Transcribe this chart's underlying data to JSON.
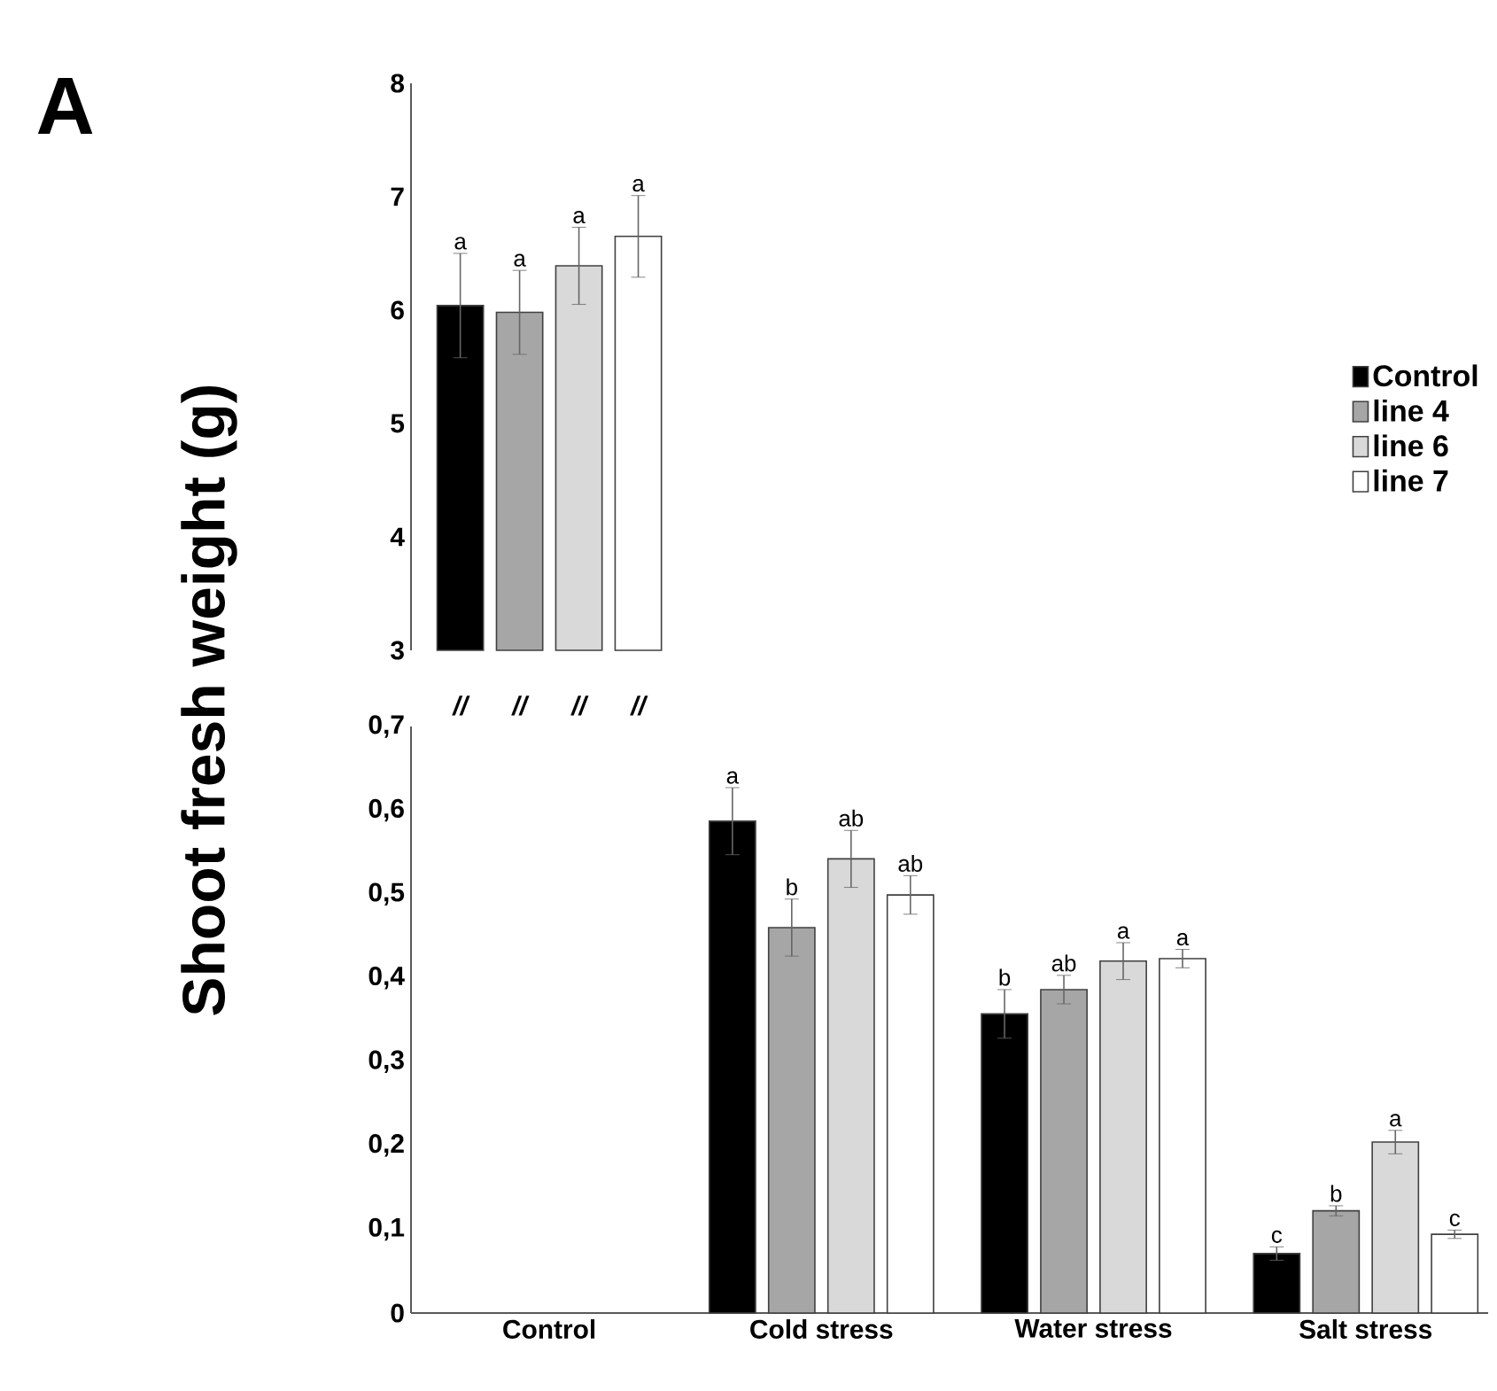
{
  "chart_data": [
    {
      "type": "bar",
      "categories": [
        null
      ],
      "series": [
        {
          "name": "Control",
          "color": "#000000",
          "values": [
            6.04
          ],
          "errors": [
            0.46
          ]
        },
        {
          "name": "line 4",
          "color": "#a6a6a6",
          "values": [
            5.98
          ],
          "errors": [
            0.37
          ]
        },
        {
          "name": "line 6",
          "color": "#d9d9d9",
          "values": [
            6.39
          ],
          "errors": [
            0.34
          ]
        },
        {
          "name": "line 7",
          "color": "#ffffff",
          "values": [
            6.65
          ],
          "errors": [
            0.36
          ]
        }
      ],
      "ylim": [
        3,
        8
      ],
      "yticks": [
        3,
        4,
        5,
        6,
        7,
        8
      ],
      "tick_labels": "y",
      "legend": "right",
      "annotations": [
        "a",
        "a",
        "a",
        "a"
      ]
    },
    {
      "type": "bar",
      "title": "A",
      "categories": [
        "Control",
        "Cold stress",
        "Water stress",
        "Salt stress"
      ],
      "ylabel": "Shoot fresh weight (g)",
      "series": [
        {
          "color": "#000000",
          "values": [
            null,
            0.587,
            0.357,
            0.071
          ],
          "errors": [
            null,
            0.04,
            0.029,
            0.008
          ]
        },
        {
          "color": "#a6a6a6",
          "values": [
            null,
            0.46,
            0.386,
            0.122
          ],
          "errors": [
            null,
            0.034,
            0.017,
            0.006
          ]
        },
        {
          "color": "#d9d9d9",
          "values": [
            null,
            0.542,
            0.42,
            0.204
          ],
          "errors": [
            null,
            0.034,
            0.022,
            0.014
          ]
        },
        {
          "color": "#ffffff",
          "values": [
            null,
            0.499,
            0.423,
            0.094
          ],
          "errors": [
            null,
            0.023,
            0.011,
            0.005
          ]
        }
      ],
      "ylim": [
        0,
        0.7
      ],
      "yticks": [
        0,
        {
          "value": 0.1,
          "label": "0,1"
        },
        {
          "value": 0.2,
          "label": "0,2"
        },
        {
          "value": 0.3,
          "label": "0,3"
        },
        {
          "value": 0.4,
          "label": "0,4"
        },
        {
          "value": 0.5,
          "label": "0,5"
        },
        {
          "value": 0.6,
          "label": "0,6"
        },
        {
          "value": 0.7,
          "label": "0,7"
        }
      ],
      "annotations": [
        "//",
        "//",
        "//",
        "//",
        "a",
        "b",
        "ab",
        "ab",
        "b",
        "ab",
        "a",
        "a",
        "c",
        "b",
        "a",
        "c"
      ]
    }
  ]
}
